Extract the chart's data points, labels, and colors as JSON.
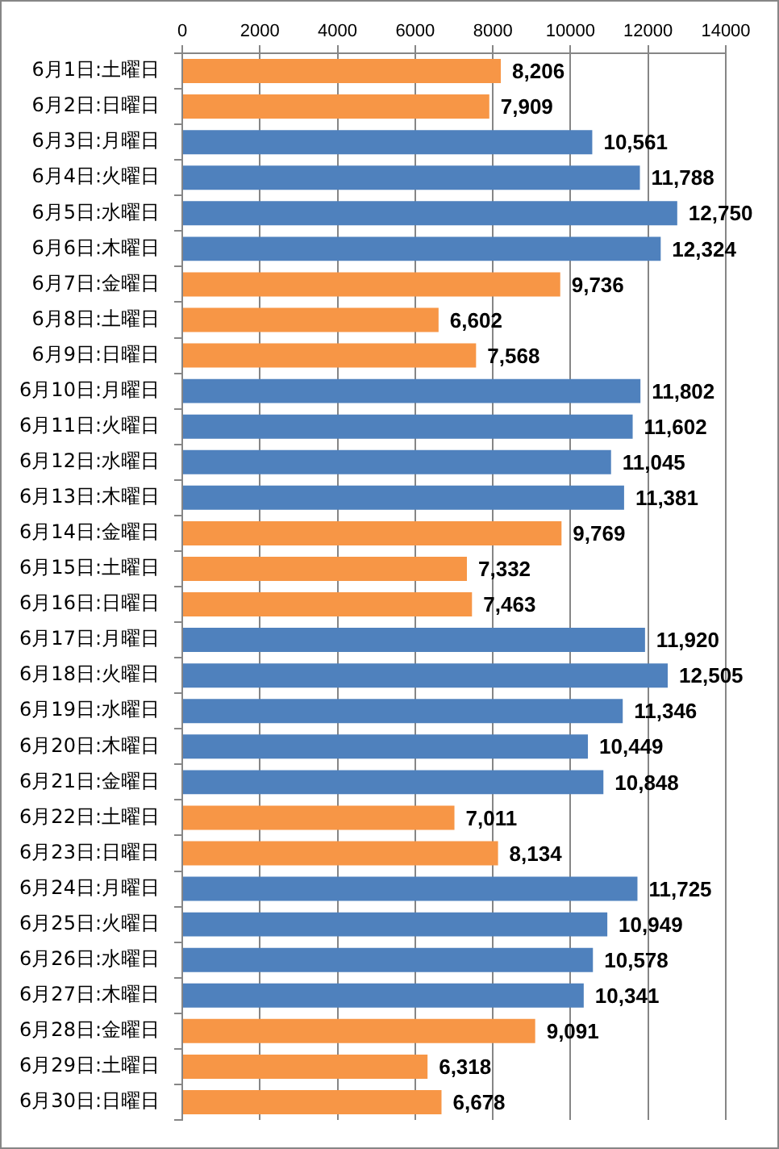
{
  "chart_data": {
    "type": "bar",
    "orientation": "horizontal",
    "categories": [
      "6月1日:土曜日",
      "6月2日:日曜日",
      "6月3日:月曜日",
      "6月4日:火曜日",
      "6月5日:水曜日",
      "6月6日:木曜日",
      "6月7日:金曜日",
      "6月8日:土曜日",
      "6月9日:日曜日",
      "6月10日:月曜日",
      "6月11日:火曜日",
      "6月12日:水曜日",
      "6月13日:木曜日",
      "6月14日:金曜日",
      "6月15日:土曜日",
      "6月16日:日曜日",
      "6月17日:月曜日",
      "6月18日:火曜日",
      "6月19日:水曜日",
      "6月20日:木曜日",
      "6月21日:金曜日",
      "6月22日:土曜日",
      "6月23日:日曜日",
      "6月24日:月曜日",
      "6月25日:火曜日",
      "6月26日:水曜日",
      "6月27日:木曜日",
      "6月28日:金曜日",
      "6月29日:土曜日",
      "6月30日:日曜日"
    ],
    "values": [
      8206,
      7909,
      10561,
      11788,
      12750,
      12324,
      9736,
      6602,
      7568,
      11802,
      11602,
      11045,
      11381,
      9769,
      7332,
      7463,
      11920,
      12505,
      11346,
      10449,
      10848,
      7011,
      8134,
      11725,
      10949,
      10578,
      10341,
      9091,
      6318,
      6678
    ],
    "value_labels": [
      "8,206",
      "7,909",
      "10,561",
      "11,788",
      "12,750",
      "12,324",
      "9,736",
      "6,602",
      "7,568",
      "11,802",
      "11,602",
      "11,045",
      "11,381",
      "9,769",
      "7,332",
      "7,463",
      "11,920",
      "12,505",
      "11,346",
      "10,449",
      "10,848",
      "7,011",
      "8,134",
      "11,725",
      "10,949",
      "10,578",
      "10,341",
      "9,091",
      "6,318",
      "6,678"
    ],
    "colors": [
      "#f79646",
      "#f79646",
      "#4f81bd",
      "#4f81bd",
      "#4f81bd",
      "#4f81bd",
      "#f79646",
      "#f79646",
      "#f79646",
      "#4f81bd",
      "#4f81bd",
      "#4f81bd",
      "#4f81bd",
      "#f79646",
      "#f79646",
      "#f79646",
      "#4f81bd",
      "#4f81bd",
      "#4f81bd",
      "#4f81bd",
      "#4f81bd",
      "#f79646",
      "#f79646",
      "#4f81bd",
      "#4f81bd",
      "#4f81bd",
      "#4f81bd",
      "#f79646",
      "#f79646",
      "#f79646"
    ],
    "xlim": [
      0,
      14000
    ],
    "xticks": [
      0,
      2000,
      4000,
      6000,
      8000,
      10000,
      12000,
      14000
    ],
    "grid": "x"
  }
}
